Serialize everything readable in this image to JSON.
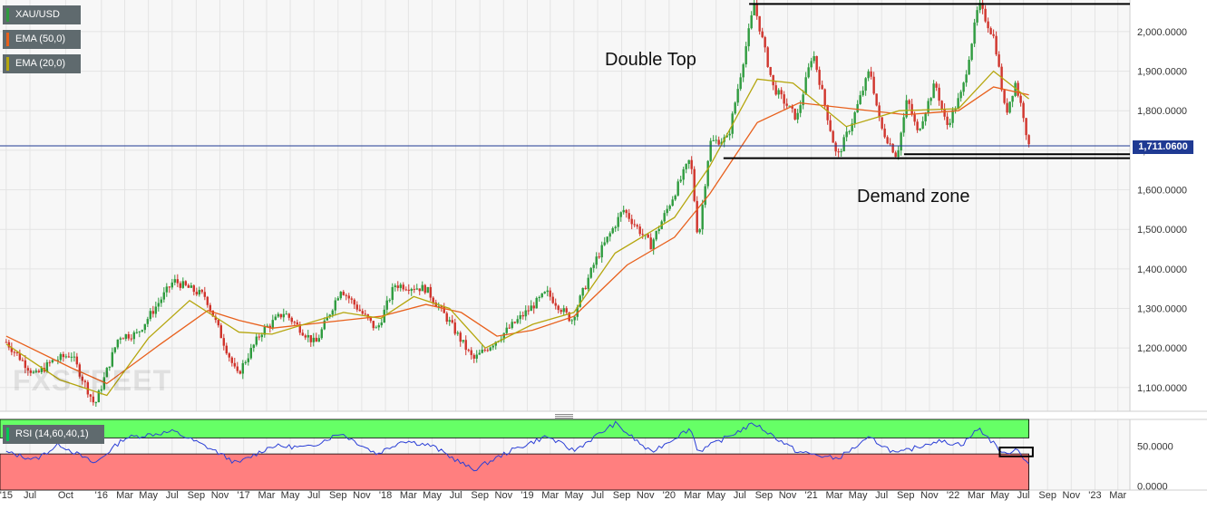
{
  "legend": {
    "symbol": "XAU/USD",
    "ema50": "EMA (50,0)",
    "ema20": "EMA (20,0)",
    "rsi": "RSI (14,60,40,1)"
  },
  "annotations": {
    "double_top": "Double Top",
    "demand_zone": "Demand zone"
  },
  "watermark": "FXSTREET",
  "current_price_label": "1,711.0600",
  "colors": {
    "up": "#2e9b3e",
    "down": "#d0342c",
    "ema50": "#e8601c",
    "ema20": "#b5a60e",
    "rsi_line": "#2b3fd6",
    "rsi_over": "#66ff66",
    "rsi_under": "#ff7f7f",
    "price_line": "#1f3a93",
    "legend_bg": "#5f6a6e"
  },
  "icons": {
    "legend_swatch": "color-bar-icon",
    "splitter": "drag-handle-icon"
  },
  "chart_data": [
    {
      "type": "candlestick",
      "title": "XAU/USD",
      "timeframe": "weekly",
      "ylim": [
        1040,
        2080
      ],
      "y_ticks": [
        "1,100.0000",
        "1,200.0000",
        "1,300.0000",
        "1,400.0000",
        "1,500.0000",
        "1,600.0000",
        "1,700.0000",
        "1,800.0000",
        "1,900.0000",
        "2,000.0000"
      ],
      "x_ticks": [
        "'15",
        "Jul",
        "Oct",
        "'16",
        "Mar",
        "May",
        "Jul",
        "Sep",
        "Nov",
        "'17",
        "Mar",
        "May",
        "Jul",
        "Sep",
        "Nov",
        "'18",
        "Mar",
        "May",
        "Jul",
        "Sep",
        "Nov",
        "'19",
        "Mar",
        "May",
        "Jul",
        "Sep",
        "Nov",
        "'20",
        "Mar",
        "May",
        "Jul",
        "Sep",
        "Nov",
        "'21",
        "Mar",
        "May",
        "Jul",
        "Sep",
        "Nov",
        "'22",
        "Mar",
        "May",
        "Jul",
        "Sep",
        "Nov",
        "'23",
        "Mar"
      ],
      "x_tick_dates": [
        "2015-05-01",
        "2015-07-01",
        "2015-10-01",
        "2016-01-01",
        "2016-03-01",
        "2016-05-01",
        "2016-07-01",
        "2016-09-01",
        "2016-11-01",
        "2017-01-01",
        "2017-03-01",
        "2017-05-01",
        "2017-07-01",
        "2017-09-01",
        "2017-11-01",
        "2018-01-01",
        "2018-03-01",
        "2018-05-01",
        "2018-07-01",
        "2018-09-01",
        "2018-11-01",
        "2019-01-01",
        "2019-03-01",
        "2019-05-01",
        "2019-07-01",
        "2019-09-01",
        "2019-11-01",
        "2020-01-01",
        "2020-03-01",
        "2020-05-01",
        "2020-07-01",
        "2020-09-01",
        "2020-11-01",
        "2021-01-01",
        "2021-03-01",
        "2021-05-01",
        "2021-07-01",
        "2021-09-01",
        "2021-11-01",
        "2022-01-01",
        "2022-03-01",
        "2022-05-01",
        "2022-07-01",
        "2022-09-01",
        "2022-11-01",
        "2023-01-01",
        "2023-03-01"
      ],
      "x_range": [
        "2015-04-15",
        "2023-04-01"
      ],
      "price_path": [
        [
          "2015-05-01",
          1215
        ],
        [
          "2015-07-15",
          1130
        ],
        [
          "2015-08-25",
          1165
        ],
        [
          "2015-10-15",
          1185
        ],
        [
          "2015-12-15",
          1055
        ],
        [
          "2016-02-15",
          1230
        ],
        [
          "2016-04-01",
          1235
        ],
        [
          "2016-07-05",
          1370
        ],
        [
          "2016-09-25",
          1330
        ],
        [
          "2016-12-15",
          1130
        ],
        [
          "2017-02-15",
          1240
        ],
        [
          "2017-04-15",
          1290
        ],
        [
          "2017-07-05",
          1210
        ],
        [
          "2017-09-08",
          1350
        ],
        [
          "2017-12-10",
          1245
        ],
        [
          "2018-01-25",
          1360
        ],
        [
          "2018-04-15",
          1350
        ],
        [
          "2018-06-15",
          1265
        ],
        [
          "2018-08-15",
          1170
        ],
        [
          "2018-10-25",
          1230
        ],
        [
          "2019-02-20",
          1340
        ],
        [
          "2019-04-25",
          1270
        ],
        [
          "2019-06-25",
          1420
        ],
        [
          "2019-09-05",
          1550
        ],
        [
          "2019-11-15",
          1460
        ],
        [
          "2020-01-05",
          1570
        ],
        [
          "2020-02-25",
          1680
        ],
        [
          "2020-03-16",
          1470
        ],
        [
          "2020-04-15",
          1720
        ],
        [
          "2020-06-01",
          1730
        ],
        [
          "2020-08-07",
          2070
        ],
        [
          "2020-09-25",
          1860
        ],
        [
          "2020-11-25",
          1780
        ],
        [
          "2021-01-05",
          1950
        ],
        [
          "2021-03-08",
          1680
        ],
        [
          "2021-04-15",
          1770
        ],
        [
          "2021-06-01",
          1905
        ],
        [
          "2021-06-28",
          1760
        ],
        [
          "2021-08-09",
          1685
        ],
        [
          "2021-09-05",
          1830
        ],
        [
          "2021-10-01",
          1745
        ],
        [
          "2021-11-16",
          1870
        ],
        [
          "2021-12-15",
          1760
        ],
        [
          "2022-01-25",
          1850
        ],
        [
          "2022-03-08",
          2070
        ],
        [
          "2022-04-18",
          1980
        ],
        [
          "2022-05-16",
          1790
        ],
        [
          "2022-06-10",
          1870
        ],
        [
          "2022-07-01",
          1790
        ],
        [
          "2022-07-15",
          1705
        ]
      ],
      "current_price": 1711.06,
      "ema_50_path": [
        [
          "2015-05-01",
          1230
        ],
        [
          "2015-10-15",
          1150
        ],
        [
          "2016-01-15",
          1110
        ],
        [
          "2016-06-01",
          1210
        ],
        [
          "2016-10-01",
          1295
        ],
        [
          "2016-12-20",
          1270
        ],
        [
          "2017-03-15",
          1250
        ],
        [
          "2017-09-15",
          1270
        ],
        [
          "2017-12-20",
          1280
        ],
        [
          "2018-04-15",
          1310
        ],
        [
          "2018-07-15",
          1290
        ],
        [
          "2018-10-15",
          1230
        ],
        [
          "2019-01-15",
          1245
        ],
        [
          "2019-05-01",
          1280
        ],
        [
          "2019-09-15",
          1410
        ],
        [
          "2020-01-15",
          1480
        ],
        [
          "2020-04-15",
          1590
        ],
        [
          "2020-08-15",
          1770
        ],
        [
          "2020-12-01",
          1820
        ],
        [
          "2021-04-15",
          1805
        ],
        [
          "2021-09-01",
          1790
        ],
        [
          "2022-01-15",
          1800
        ],
        [
          "2022-04-15",
          1860
        ],
        [
          "2022-07-15",
          1840
        ]
      ],
      "ema_20_path": [
        [
          "2015-05-01",
          1210
        ],
        [
          "2015-09-15",
          1120
        ],
        [
          "2016-01-15",
          1080
        ],
        [
          "2016-05-01",
          1225
        ],
        [
          "2016-08-15",
          1320
        ],
        [
          "2016-12-20",
          1240
        ],
        [
          "2017-03-15",
          1235
        ],
        [
          "2017-09-15",
          1290
        ],
        [
          "2017-12-20",
          1275
        ],
        [
          "2018-03-15",
          1330
        ],
        [
          "2018-06-15",
          1300
        ],
        [
          "2018-09-15",
          1200
        ],
        [
          "2019-01-15",
          1260
        ],
        [
          "2019-05-01",
          1290
        ],
        [
          "2019-08-15",
          1440
        ],
        [
          "2020-01-15",
          1530
        ],
        [
          "2020-04-15",
          1660
        ],
        [
          "2020-08-15",
          1880
        ],
        [
          "2020-11-15",
          1870
        ],
        [
          "2021-04-01",
          1760
        ],
        [
          "2021-08-15",
          1800
        ],
        [
          "2022-01-15",
          1805
        ],
        [
          "2022-04-15",
          1900
        ],
        [
          "2022-07-15",
          1830
        ]
      ],
      "resistance": {
        "value": 2070,
        "from": "2020-07-25",
        "to": "2023-04-01"
      },
      "demand_zone": [
        1680,
        1690
      ]
    },
    {
      "type": "line",
      "title": "RSI (14,60,40,1)",
      "ylim": [
        -5,
        83
      ],
      "y_ticks": [
        "0.0000",
        "50.0000"
      ],
      "bands": {
        "upper": 60,
        "lower": 40
      },
      "rsi_path": [
        [
          "2015-05-01",
          42
        ],
        [
          "2015-07-15",
          33
        ],
        [
          "2015-09-15",
          52
        ],
        [
          "2015-12-15",
          28
        ],
        [
          "2016-03-01",
          60
        ],
        [
          "2016-07-05",
          68
        ],
        [
          "2016-10-15",
          45
        ],
        [
          "2016-12-15",
          28
        ],
        [
          "2017-03-15",
          50
        ],
        [
          "2017-06-15",
          48
        ],
        [
          "2017-09-08",
          66
        ],
        [
          "2017-12-10",
          40
        ],
        [
          "2018-02-15",
          57
        ],
        [
          "2018-05-01",
          50
        ],
        [
          "2018-08-15",
          20
        ],
        [
          "2018-11-15",
          43
        ],
        [
          "2019-02-20",
          62
        ],
        [
          "2019-05-01",
          44
        ],
        [
          "2019-08-15",
          78
        ],
        [
          "2019-11-15",
          42
        ],
        [
          "2020-02-25",
          72
        ],
        [
          "2020-03-16",
          43
        ],
        [
          "2020-08-07",
          78
        ],
        [
          "2020-11-25",
          43
        ],
        [
          "2021-03-08",
          34
        ],
        [
          "2021-06-01",
          60
        ],
        [
          "2021-08-09",
          40
        ],
        [
          "2021-11-16",
          56
        ],
        [
          "2022-01-25",
          52
        ],
        [
          "2022-03-08",
          72
        ],
        [
          "2022-05-16",
          38
        ],
        [
          "2022-06-10",
          48
        ],
        [
          "2022-07-15",
          28
        ]
      ],
      "current_value": 28
    }
  ]
}
